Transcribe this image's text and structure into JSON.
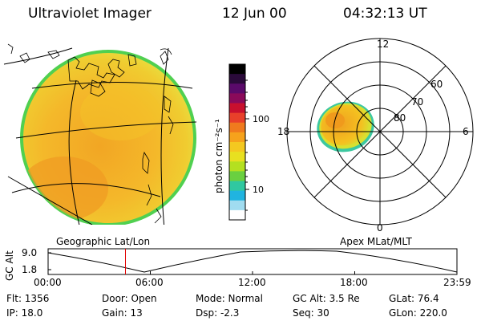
{
  "header": {
    "instrument": "Ultraviolet Imager",
    "date": "12 Jun 00",
    "time": "04:32:13 UT"
  },
  "colorbar": {
    "unit_label": "photon cm⁻²s⁻¹",
    "ticks": [
      "100",
      "10"
    ],
    "colors_top_to_bottom": [
      "#000000",
      "#2a0a3a",
      "#5a0a6a",
      "#8a0a5a",
      "#c8102e",
      "#e8402a",
      "#f07a1e",
      "#f6a21c",
      "#f4c820",
      "#e8e020",
      "#b4e020",
      "#6ad040",
      "#30c8a0",
      "#20b4e0",
      "#a0dcf0",
      "#ffffff"
    ]
  },
  "polar": {
    "labels": [
      "12",
      "60",
      "70",
      "80",
      "18",
      "6",
      "0"
    ]
  },
  "panel_labels": {
    "left": "Geographic Lat/Lon",
    "right": "Apex MLat/MLT"
  },
  "altitude_plot": {
    "ylabel": "GC Alt",
    "yticks": [
      "9.0",
      "1.8"
    ],
    "xticks": [
      "00:00",
      "06:00",
      "12:00",
      "18:00",
      "23:59"
    ],
    "current_time_hours": 4.54,
    "marker_color": "#e00000"
  },
  "status": {
    "row1": {
      "flt": "Flt: 1356",
      "door": "Door: Open",
      "mode": "Mode: Normal",
      "gcalt": "GC Alt: 3.5 Re",
      "glat": "GLat: 76.4"
    },
    "row2": {
      "ip": "IP: 18.0",
      "gain": "Gain: 13",
      "dsp": "Dsp: -2.3",
      "seq": "Seq: 30",
      "glon": "GLon: 220.0"
    }
  }
}
